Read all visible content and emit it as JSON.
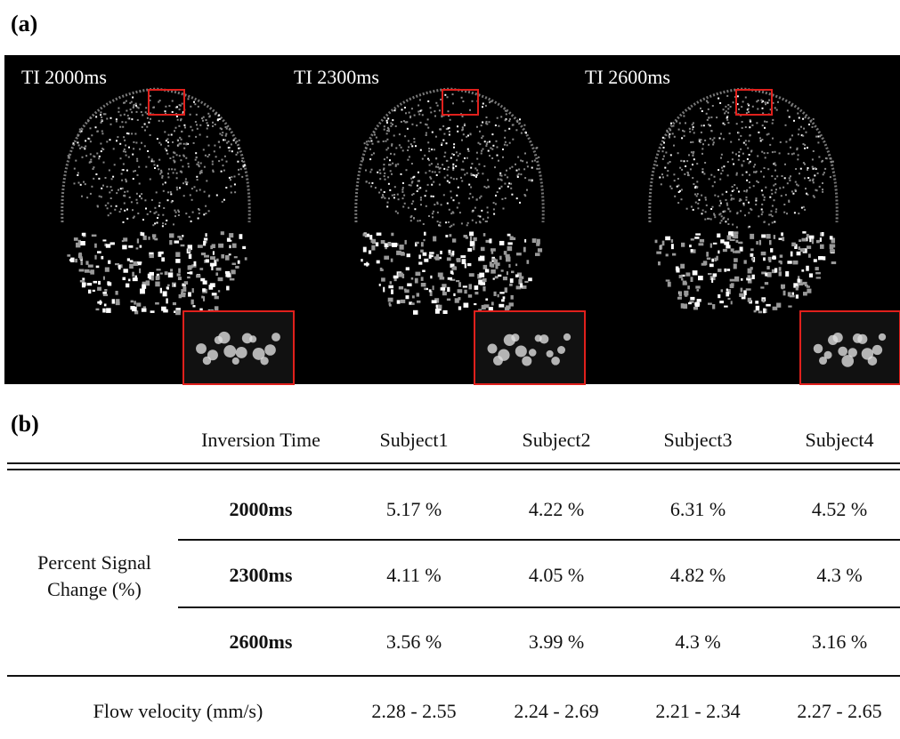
{
  "panel_a": {
    "label": "(a)",
    "images": [
      {
        "label": "TI 2000ms"
      },
      {
        "label": "TI 2300ms"
      },
      {
        "label": "TI 2600ms"
      }
    ]
  },
  "panel_b": {
    "label": "(b)",
    "table": {
      "header": [
        "Inversion Time",
        "Subject1",
        "Subject2",
        "Subject3",
        "Subject4"
      ],
      "group_label": "Percent Signal Change (%)",
      "rows": [
        {
          "time": "2000ms",
          "cells": [
            "5.17 %",
            "4.22 %",
            "6.31 %",
            "4.52 %"
          ]
        },
        {
          "time": "2300ms",
          "cells": [
            "4.11 %",
            "4.05 %",
            "4.82 %",
            "4.3 %"
          ]
        },
        {
          "time": "2600ms",
          "cells": [
            "3.56 %",
            "3.99 %",
            "4.3 %",
            "3.16 %"
          ]
        }
      ],
      "footer": {
        "label": "Flow velocity (mm/s)",
        "cells": [
          "2.28 - 2.55",
          "2.24 - 2.69",
          "2.21 - 2.34",
          "2.27 - 2.65"
        ]
      }
    }
  }
}
